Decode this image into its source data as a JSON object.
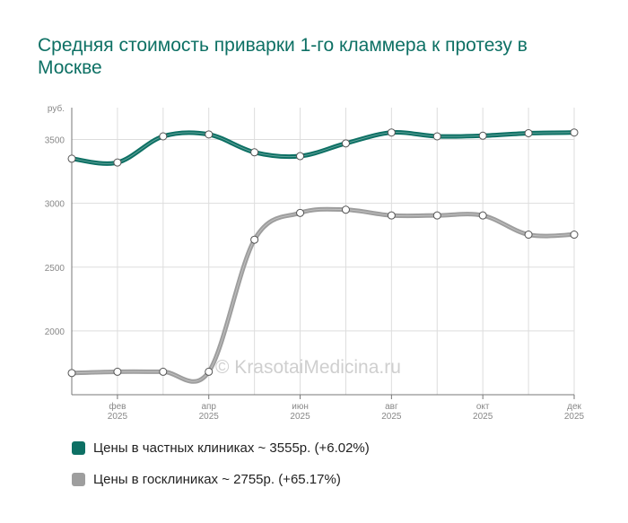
{
  "chart_data": {
    "type": "line",
    "title": "Средняя стоимость приварки 1-го кламмера к протезу в Москве",
    "y_unit": "руб.",
    "ylim": [
      1500,
      3750
    ],
    "yticks": [
      2000,
      2500,
      3000,
      3500
    ],
    "grid": true,
    "legend_position": "bottom",
    "x": [
      "2025-01",
      "2025-02",
      "2025-03",
      "2025-04",
      "2025-05",
      "2025-06",
      "2025-07",
      "2025-08",
      "2025-09",
      "2025-10",
      "2025-11",
      "2025-12"
    ],
    "x_tick_labels": [
      {
        "index": 1,
        "month": "фев",
        "year": "2025"
      },
      {
        "index": 3,
        "month": "апр",
        "year": "2025"
      },
      {
        "index": 5,
        "month": "июн",
        "year": "2025"
      },
      {
        "index": 7,
        "month": "авг",
        "year": "2025"
      },
      {
        "index": 9,
        "month": "окт",
        "year": "2025"
      },
      {
        "index": 11,
        "month": "дек",
        "year": "2025"
      }
    ],
    "series": [
      {
        "name": "Цены в частных клиниках",
        "color": "#0d7064",
        "values": [
          3350,
          3320,
          3525,
          3540,
          3400,
          3370,
          3470,
          3555,
          3525,
          3530,
          3550,
          3555
        ]
      },
      {
        "name": "Цены в госклиниках",
        "color": "#9e9e9e",
        "values": [
          1670,
          1680,
          1680,
          1680,
          2715,
          2925,
          2950,
          2905,
          2905,
          2905,
          2755,
          2755
        ]
      }
    ]
  },
  "legend": [
    {
      "label": "Цены в частных клиниках ~ 3555р. (+6.02%)",
      "color": "#0d7064"
    },
    {
      "label": "Цены в госклиниках ~ 2755р. (+65.17%)",
      "color": "#9e9e9e"
    }
  ],
  "watermark": "© KrasotaiMedicina.ru"
}
